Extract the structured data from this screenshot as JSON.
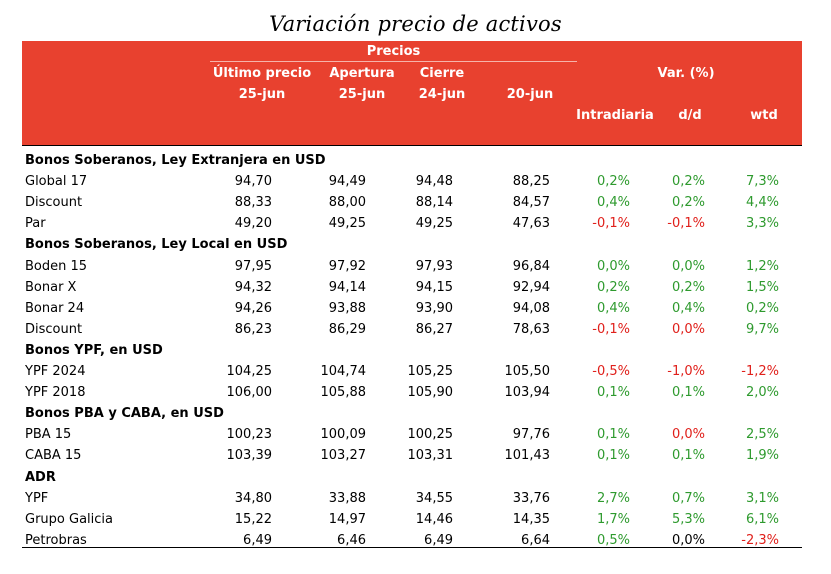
{
  "title": "Variación precio de activos",
  "header": {
    "precios": "Precios",
    "var": "Var. (%)",
    "col1_a": "Último precio",
    "col1_b": "25-jun",
    "col2_a": "Apertura",
    "col2_b": "25-jun",
    "col3_a": "Cierre",
    "col3_b": "24-jun",
    "col4_b": "20-jun",
    "col5": "Intradiaria",
    "col6": "d/d",
    "col7": "wtd"
  },
  "rows": [
    {
      "section": "Bonos Soberanos, Ley Extranjera en USD"
    },
    {
      "name": "Global 17",
      "v": [
        "94,70",
        "94,49",
        "94,48",
        "88,25"
      ],
      "p": [
        "0,2%",
        "0,2%",
        "7,3%"
      ],
      "s": [
        "pos",
        "pos",
        "pos"
      ]
    },
    {
      "name": "Discount",
      "v": [
        "88,33",
        "88,00",
        "88,14",
        "84,57"
      ],
      "p": [
        "0,4%",
        "0,2%",
        "4,4%"
      ],
      "s": [
        "pos",
        "pos",
        "pos"
      ]
    },
    {
      "name": "Par",
      "v": [
        "49,20",
        "49,25",
        "49,25",
        "47,63"
      ],
      "p": [
        "-0,1%",
        "-0,1%",
        "3,3%"
      ],
      "s": [
        "neg",
        "neg",
        "pos"
      ]
    },
    {
      "section": "Bonos Soberanos, Ley Local en USD"
    },
    {
      "name": "Boden 15",
      "v": [
        "97,95",
        "97,92",
        "97,93",
        "96,84"
      ],
      "p": [
        "0,0%",
        "0,0%",
        "1,2%"
      ],
      "s": [
        "pos",
        "pos",
        "pos"
      ]
    },
    {
      "name": "Bonar X",
      "v": [
        "94,32",
        "94,14",
        "94,15",
        "92,94"
      ],
      "p": [
        "0,2%",
        "0,2%",
        "1,5%"
      ],
      "s": [
        "pos",
        "pos",
        "pos"
      ]
    },
    {
      "name": "Bonar 24",
      "v": [
        "94,26",
        "93,88",
        "93,90",
        "94,08"
      ],
      "p": [
        "0,4%",
        "0,4%",
        "0,2%"
      ],
      "s": [
        "pos",
        "pos",
        "pos"
      ]
    },
    {
      "name": "Discount",
      "v": [
        "86,23",
        "86,29",
        "86,27",
        "78,63"
      ],
      "p": [
        "-0,1%",
        "0,0%",
        "9,7%"
      ],
      "s": [
        "neg",
        "neg",
        "pos"
      ]
    },
    {
      "section": "Bonos YPF, en USD"
    },
    {
      "name": "YPF 2024",
      "v": [
        "104,25",
        "104,74",
        "105,25",
        "105,50"
      ],
      "p": [
        "-0,5%",
        "-1,0%",
        "-1,2%"
      ],
      "s": [
        "neg",
        "neg",
        "neg"
      ]
    },
    {
      "name": "YPF 2018",
      "v": [
        "106,00",
        "105,88",
        "105,90",
        "103,94"
      ],
      "p": [
        "0,1%",
        "0,1%",
        "2,0%"
      ],
      "s": [
        "pos",
        "pos",
        "pos"
      ]
    },
    {
      "section": "Bonos PBA y CABA, en USD"
    },
    {
      "name": "PBA 15",
      "v": [
        "100,23",
        "100,09",
        "100,25",
        "97,76"
      ],
      "p": [
        "0,1%",
        "0,0%",
        "2,5%"
      ],
      "s": [
        "pos",
        "neg",
        "pos"
      ]
    },
    {
      "name": "CABA 15",
      "v": [
        "103,39",
        "103,27",
        "103,31",
        "101,43"
      ],
      "p": [
        "0,1%",
        "0,1%",
        "1,9%"
      ],
      "s": [
        "pos",
        "pos",
        "pos"
      ]
    },
    {
      "section": "ADR"
    },
    {
      "name": "YPF",
      "v": [
        "34,80",
        "33,88",
        "34,55",
        "33,76"
      ],
      "p": [
        "2,7%",
        "0,7%",
        "3,1%"
      ],
      "s": [
        "pos",
        "pos",
        "pos"
      ]
    },
    {
      "name": "Grupo Galicia",
      "v": [
        "15,22",
        "14,97",
        "14,46",
        "14,35"
      ],
      "p": [
        "1,7%",
        "5,3%",
        "6,1%"
      ],
      "s": [
        "pos",
        "pos",
        "pos"
      ]
    },
    {
      "name": "Petrobras",
      "v": [
        "6,49",
        "6,46",
        "6,49",
        "6,64"
      ],
      "p": [
        "0,5%",
        "0,0%",
        "-2,3%"
      ],
      "s": [
        "pos",
        "neu",
        "neg"
      ]
    }
  ],
  "colors": {
    "header_bg": "#e8412f",
    "positive": "#2e9a2e",
    "negative": "#e0201b"
  }
}
